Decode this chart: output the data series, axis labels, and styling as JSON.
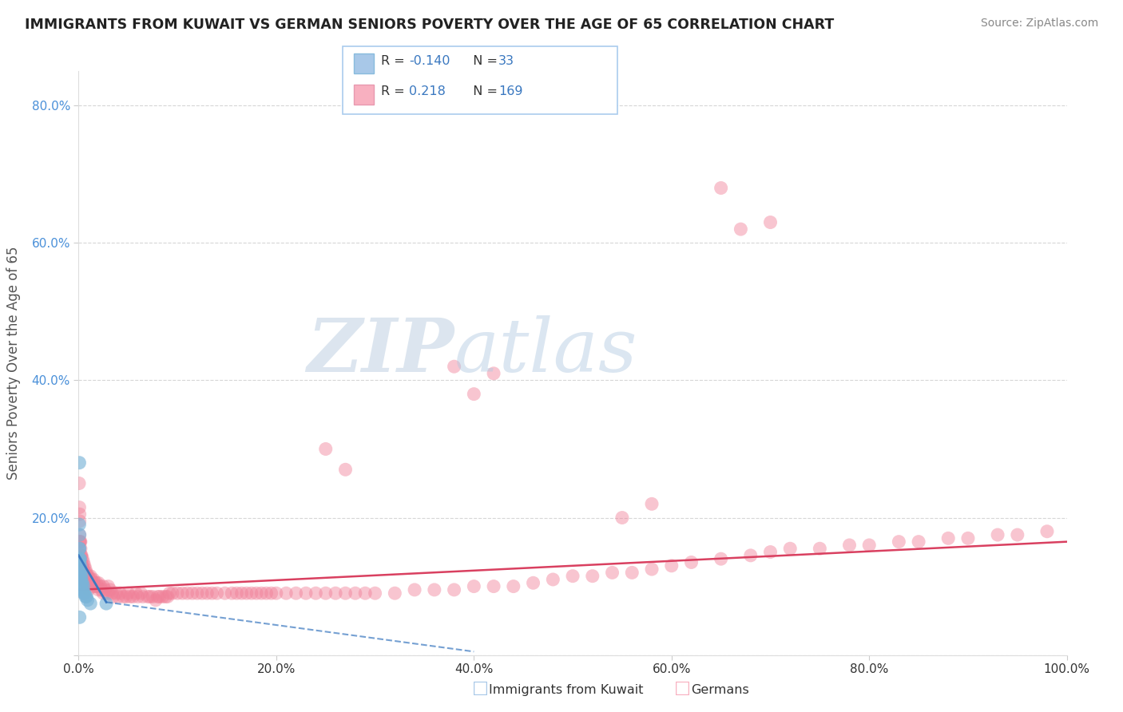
{
  "title": "IMMIGRANTS FROM KUWAIT VS GERMAN SENIORS POVERTY OVER THE AGE OF 65 CORRELATION CHART",
  "source": "Source: ZipAtlas.com",
  "ylabel": "Seniors Poverty Over the Age of 65",
  "watermark_zip": "ZIP",
  "watermark_atlas": "atlas",
  "xlim": [
    0.0,
    1.0
  ],
  "ylim": [
    0.0,
    0.85
  ],
  "xticks": [
    0.0,
    0.2,
    0.4,
    0.6,
    0.8,
    1.0
  ],
  "xticklabels": [
    "0.0%",
    "20.0%",
    "40.0%",
    "60.0%",
    "80.0%",
    "100.0%"
  ],
  "yticks": [
    0.0,
    0.2,
    0.4,
    0.6,
    0.8
  ],
  "yticklabels": [
    "",
    "20.0%",
    "40.0%",
    "60.0%",
    "80.0%"
  ],
  "kuwait_color": "#7ab4d8",
  "german_color": "#f08098",
  "kuwait_line_color": "#3a78c0",
  "german_line_color": "#d94060",
  "background_color": "#ffffff",
  "grid_color": "#cccccc",
  "kuwait_points_x": [
    0.0008,
    0.0008,
    0.0008,
    0.001,
    0.001,
    0.001,
    0.001,
    0.001,
    0.001,
    0.0012,
    0.0012,
    0.0015,
    0.0015,
    0.0015,
    0.002,
    0.002,
    0.002,
    0.002,
    0.0025,
    0.003,
    0.003,
    0.003,
    0.004,
    0.004,
    0.005,
    0.005,
    0.006,
    0.007,
    0.008,
    0.009,
    0.012,
    0.028,
    0.001
  ],
  "kuwait_points_y": [
    0.28,
    0.19,
    0.155,
    0.175,
    0.155,
    0.14,
    0.135,
    0.125,
    0.115,
    0.14,
    0.125,
    0.14,
    0.125,
    0.11,
    0.13,
    0.12,
    0.115,
    0.105,
    0.11,
    0.115,
    0.105,
    0.095,
    0.105,
    0.095,
    0.1,
    0.09,
    0.09,
    0.085,
    0.085,
    0.08,
    0.075,
    0.075,
    0.055
  ],
  "german_points_x": [
    0.0005,
    0.0008,
    0.001,
    0.001,
    0.001,
    0.001,
    0.001,
    0.0012,
    0.0015,
    0.002,
    0.002,
    0.002,
    0.002,
    0.002,
    0.0025,
    0.003,
    0.003,
    0.003,
    0.003,
    0.003,
    0.004,
    0.004,
    0.004,
    0.004,
    0.005,
    0.005,
    0.005,
    0.006,
    0.006,
    0.006,
    0.007,
    0.007,
    0.007,
    0.008,
    0.008,
    0.008,
    0.009,
    0.009,
    0.01,
    0.01,
    0.01,
    0.011,
    0.012,
    0.012,
    0.013,
    0.014,
    0.015,
    0.015,
    0.016,
    0.017,
    0.018,
    0.019,
    0.02,
    0.02,
    0.022,
    0.023,
    0.025,
    0.025,
    0.027,
    0.028,
    0.03,
    0.03,
    0.032,
    0.034,
    0.035,
    0.038,
    0.04,
    0.042,
    0.045,
    0.048,
    0.05,
    0.052,
    0.055,
    0.058,
    0.06,
    0.063,
    0.065,
    0.07,
    0.072,
    0.075,
    0.078,
    0.08,
    0.082,
    0.085,
    0.088,
    0.09,
    0.092,
    0.095,
    0.1,
    0.105,
    0.11,
    0.115,
    0.12,
    0.125,
    0.13,
    0.135,
    0.14,
    0.148,
    0.155,
    0.16,
    0.165,
    0.17,
    0.175,
    0.18,
    0.185,
    0.19,
    0.195,
    0.2,
    0.21,
    0.22,
    0.23,
    0.24,
    0.25,
    0.26,
    0.27,
    0.28,
    0.29,
    0.3,
    0.32,
    0.34,
    0.36,
    0.38,
    0.4,
    0.42,
    0.44,
    0.46,
    0.48,
    0.5,
    0.52,
    0.54,
    0.56,
    0.58,
    0.6,
    0.62,
    0.65,
    0.68,
    0.7,
    0.72,
    0.75,
    0.78,
    0.8,
    0.83,
    0.85,
    0.88,
    0.9,
    0.93,
    0.95,
    0.98,
    0.65,
    0.67,
    0.7,
    0.38,
    0.4,
    0.42,
    0.55,
    0.58,
    0.25,
    0.27
  ],
  "german_points_y": [
    0.25,
    0.215,
    0.205,
    0.195,
    0.175,
    0.165,
    0.155,
    0.165,
    0.165,
    0.165,
    0.155,
    0.145,
    0.14,
    0.13,
    0.145,
    0.145,
    0.135,
    0.13,
    0.125,
    0.115,
    0.14,
    0.13,
    0.12,
    0.11,
    0.135,
    0.125,
    0.115,
    0.13,
    0.12,
    0.11,
    0.125,
    0.115,
    0.105,
    0.12,
    0.11,
    0.105,
    0.115,
    0.105,
    0.115,
    0.105,
    0.095,
    0.11,
    0.115,
    0.105,
    0.11,
    0.105,
    0.11,
    0.1,
    0.105,
    0.1,
    0.105,
    0.1,
    0.105,
    0.095,
    0.1,
    0.095,
    0.1,
    0.09,
    0.095,
    0.09,
    0.1,
    0.09,
    0.095,
    0.09,
    0.085,
    0.09,
    0.085,
    0.09,
    0.085,
    0.085,
    0.09,
    0.085,
    0.085,
    0.09,
    0.085,
    0.09,
    0.085,
    0.085,
    0.085,
    0.085,
    0.08,
    0.085,
    0.085,
    0.085,
    0.085,
    0.085,
    0.09,
    0.09,
    0.09,
    0.09,
    0.09,
    0.09,
    0.09,
    0.09,
    0.09,
    0.09,
    0.09,
    0.09,
    0.09,
    0.09,
    0.09,
    0.09,
    0.09,
    0.09,
    0.09,
    0.09,
    0.09,
    0.09,
    0.09,
    0.09,
    0.09,
    0.09,
    0.09,
    0.09,
    0.09,
    0.09,
    0.09,
    0.09,
    0.09,
    0.095,
    0.095,
    0.095,
    0.1,
    0.1,
    0.1,
    0.105,
    0.11,
    0.115,
    0.115,
    0.12,
    0.12,
    0.125,
    0.13,
    0.135,
    0.14,
    0.145,
    0.15,
    0.155,
    0.155,
    0.16,
    0.16,
    0.165,
    0.165,
    0.17,
    0.17,
    0.175,
    0.175,
    0.18,
    0.68,
    0.62,
    0.63,
    0.42,
    0.38,
    0.41,
    0.2,
    0.22,
    0.3,
    0.27
  ]
}
